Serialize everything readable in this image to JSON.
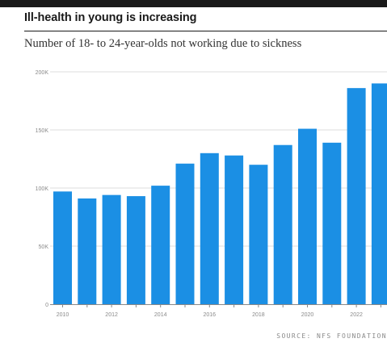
{
  "header": {
    "title": "Ill-health in young is increasing",
    "subtitle": "Number of 18- to 24-year-olds not working due to sickness"
  },
  "source": "SOURCE: NFS FOUNDATION",
  "colors": {
    "bar": "#1b8fe4",
    "grid": "#dddddd",
    "axis": "#888888",
    "topbar": "#1a1a1a"
  },
  "chart_data": {
    "type": "bar",
    "title": "",
    "xlabel": "",
    "ylabel": "",
    "categories": [
      "2010",
      "2011",
      "2012",
      "2013",
      "2014",
      "2015",
      "2016",
      "2017",
      "2018",
      "2019",
      "2020",
      "2021",
      "2022",
      "2023"
    ],
    "category_labels": [
      "2010",
      "",
      "2012",
      "",
      "2014",
      "",
      "2016",
      "",
      "2018",
      "",
      "2020",
      "",
      "2022",
      ""
    ],
    "values": [
      97,
      91,
      94,
      93,
      102,
      121,
      130,
      128,
      120,
      137,
      151,
      139,
      186,
      190
    ],
    "ylim": [
      0,
      200
    ],
    "yticks": [
      0,
      50,
      100,
      150,
      200
    ],
    "ytick_labels": [
      "0",
      "50K",
      "100K",
      "150K",
      "200K"
    ],
    "grid": true
  }
}
